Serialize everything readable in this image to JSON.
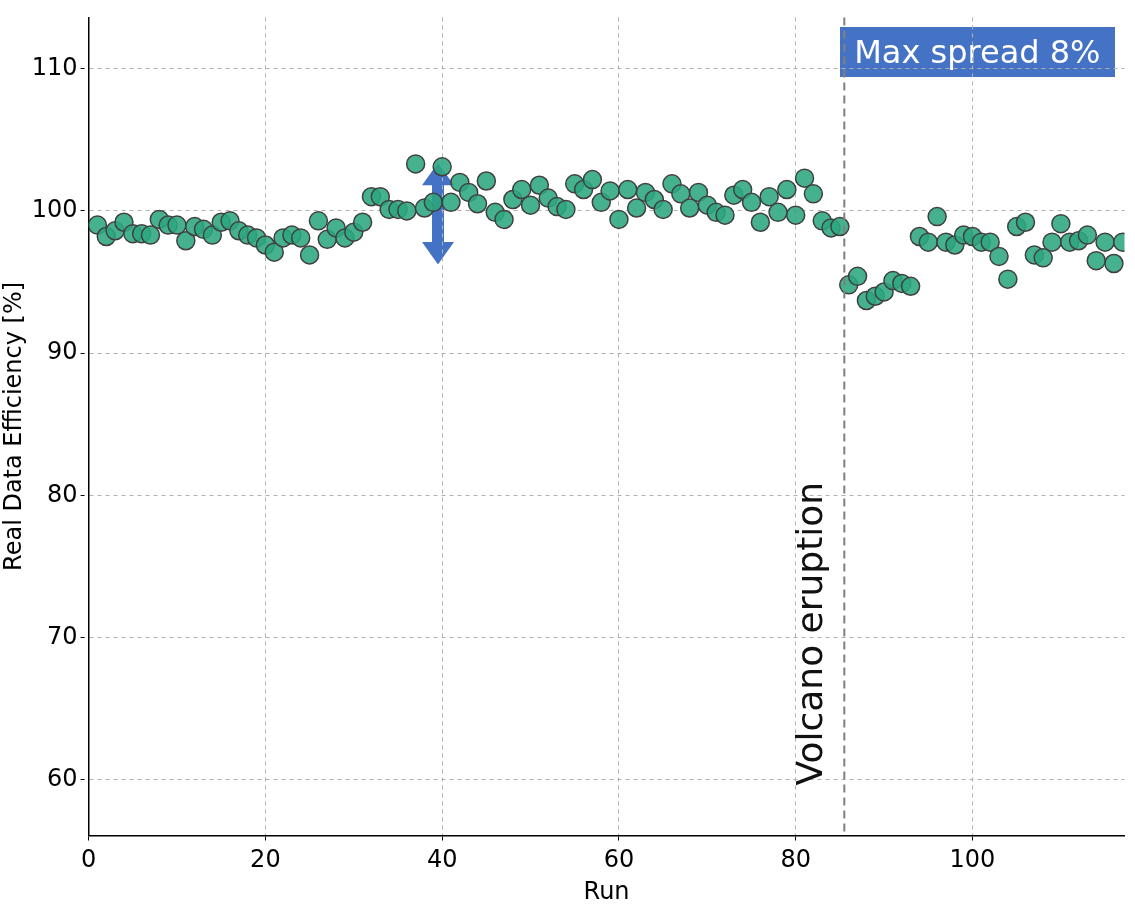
{
  "chart_data": {
    "type": "scatter",
    "xlabel": "Run",
    "ylabel": "Real Data Efficiency [%]",
    "annotations": [
      "Max spread 8%"
    ],
    "x": [
      1,
      2,
      3,
      4,
      5,
      6,
      7,
      8,
      9,
      10,
      11,
      12,
      13,
      14,
      15,
      16,
      17,
      18,
      19,
      20,
      21,
      22,
      23,
      24,
      25,
      26,
      27,
      28,
      29,
      30,
      31,
      32,
      33,
      34,
      35,
      36,
      37,
      38,
      39,
      40,
      41,
      42,
      43,
      44,
      45,
      46,
      47,
      48,
      49,
      50,
      51,
      52,
      53,
      54,
      55,
      56,
      57,
      58,
      59,
      60,
      61,
      62,
      63,
      64,
      65,
      66,
      67,
      68,
      69,
      70,
      71,
      72,
      73,
      74,
      75,
      76,
      77,
      78,
      79,
      80,
      81,
      82,
      83,
      84,
      85,
      86,
      87,
      88,
      89,
      90,
      91,
      92,
      93,
      94,
      95,
      96,
      97,
      98,
      99,
      100,
      101,
      102,
      103,
      104,
      105,
      106,
      107,
      108,
      109,
      110,
      111,
      112,
      113,
      114,
      115,
      116,
      117
    ],
    "series": [
      {
        "color": "#2ca680",
        "values": [
          99.0,
          98.2,
          98.6,
          99.2,
          98.4,
          98.4,
          98.3,
          99.4,
          99.0,
          99.0,
          97.9,
          98.9,
          98.7,
          98.3,
          99.2,
          99.3,
          98.6,
          98.3,
          98.1,
          97.6,
          97.1,
          98.1,
          98.3,
          98.1,
          96.9,
          99.3,
          98.0,
          98.8,
          98.1,
          98.5,
          99.2,
          101.0,
          101.0,
          100.1,
          100.1,
          100.0,
          103.3,
          100.2,
          100.6,
          103.1,
          100.6,
          102.0,
          101.3,
          100.5,
          102.1,
          99.9,
          99.4,
          100.8,
          101.5,
          100.4,
          101.8,
          100.9,
          100.3,
          100.1,
          101.9,
          101.5,
          102.2,
          100.6,
          101.4,
          99.4,
          101.5,
          100.2,
          101.3,
          100.8,
          100.1,
          101.9,
          101.2,
          100.2,
          101.3,
          100.4,
          99.9,
          99.7,
          101.1,
          101.5,
          100.6,
          99.2,
          101.0,
          99.9,
          101.5,
          99.7,
          102.3,
          101.2,
          99.3,
          98.8,
          98.9,
          94.8,
          95.4,
          93.7,
          94.0,
          94.3,
          95.1,
          94.9,
          94.7,
          98.2,
          97.8,
          99.6,
          97.8,
          97.6,
          98.3,
          98.2,
          97.8,
          97.8,
          96.8,
          95.2,
          98.9,
          99.2,
          96.9,
          96.7,
          97.8,
          99.1,
          97.8,
          97.9,
          98.3,
          96.5,
          97.8,
          96.3,
          97.8
        ]
      }
    ],
    "xlim": [
      0,
      117.2
    ],
    "xticks": [
      0,
      20,
      40,
      60,
      80,
      100
    ],
    "ylim": [
      56.1,
      113.6
    ],
    "yticks": [
      60,
      70,
      80,
      90,
      100,
      110
    ],
    "grid": true,
    "marker": "circle",
    "ref_lines": [
      {
        "axis": "x",
        "value": 85.5,
        "label": "Volcano eruption",
        "color": "#808080",
        "line_style": "dashed"
      }
    ]
  }
}
